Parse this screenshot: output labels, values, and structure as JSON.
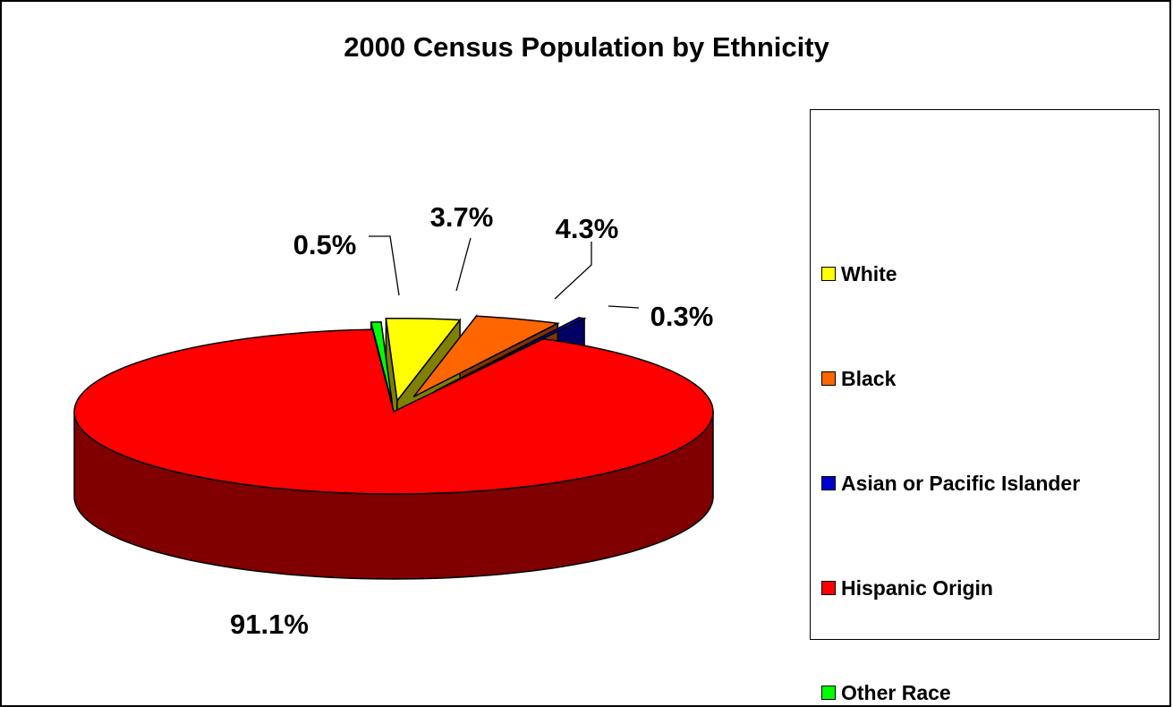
{
  "chart_data": {
    "type": "pie",
    "style": "3d-exploded",
    "title": "2000 Census Population by Ethnicity",
    "categories": [
      "White",
      "Black",
      "Asian or Pacific Islander",
      "Hispanic Origin",
      "Other Race"
    ],
    "values": [
      3.7,
      4.3,
      0.3,
      91.1,
      0.5
    ],
    "unit": "%",
    "data_labels": [
      "3.7%",
      "4.3%",
      "0.3%",
      "91.1%",
      "0.5%"
    ],
    "colors": [
      "#ffff00",
      "#ff6600",
      "#0000cc",
      "#ff0000",
      "#00ff00"
    ],
    "legend_position": "right",
    "grid": false
  }
}
